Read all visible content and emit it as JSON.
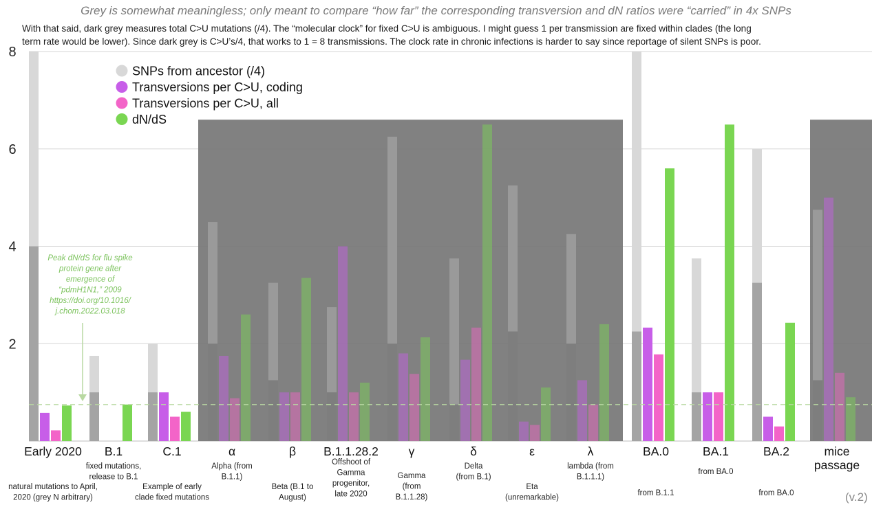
{
  "subtitle": "Grey is somewhat meaningless; only meant to compare “how far” the corresponding transversion and dN ratios were “carried” in 4x SNPs",
  "note_lines": [
    "With that said, dark grey measures total C>U mutations (/4). The “molecular clock” for fixed C>U is ambiguous. I might guess 1 per transmission are fixed within clades (the long",
    "term rate would be lower). Since dark grey is C>U’s/4, that works to 1 = 8 transmissions. The clock rate in chronic infections is harder to say since reportage of silent SNPs is poor."
  ],
  "version": "(v.2)",
  "colors": {
    "grey_light": "#d8d8d8",
    "grey_dark": "#a4a4a4",
    "purple": "#c75ee8",
    "pink": "#f364c8",
    "green": "#7ad652",
    "band": "#767676"
  },
  "chart_data": {
    "type": "bar",
    "title": "",
    "ylim": [
      0,
      8
    ],
    "yticks": [
      2,
      4,
      6,
      8
    ],
    "legend": {
      "position": "top-left",
      "entries": [
        {
          "label": "SNPs from ancestor (/4)",
          "color": "#d8d8d8"
        },
        {
          "label": "Transversions per C>U, coding",
          "color": "#c75ee8"
        },
        {
          "label": "Transversions per C>U, all",
          "color": "#f364c8"
        },
        {
          "label": "dN/dS",
          "color": "#7ad652"
        }
      ]
    },
    "reference_line": {
      "y": 0.75,
      "label": "Peak dN/dS for flu spike protein gene after emergence of “pdmH1N1,” 2009 https://doi.org/10.1016/j.chom.2022.03.018"
    },
    "annotation_lines": [
      "Peak dN/dS for flu spike",
      "protein gene after",
      "emergence of",
      "“pdmH1N1,” 2009",
      "https://doi.org/10.1016/",
      "j.chom.2022.03.018"
    ],
    "shaded_groups": [
      [
        "α",
        "β",
        "B.1.1.28.2",
        "γ",
        "δ",
        "ε",
        "λ"
      ],
      [
        "mice passage"
      ]
    ],
    "groups": [
      {
        "label": "Early 2020",
        "label_lines": [
          "Early 2020"
        ],
        "sub_lines": [
          "natural mutations to April,",
          "2020 (grey N arbitrary)"
        ],
        "snps_total": 8.0,
        "cu_over4": 4.0,
        "transv_coding": 0.58,
        "transv_all": 0.22,
        "dnds": 0.73,
        "shaded": false
      },
      {
        "label": "B.1",
        "label_lines": [
          "B.1"
        ],
        "sub_lines": [
          "fixed mutations,",
          "release to B.1"
        ],
        "snps_total": 1.75,
        "cu_over4": 1.0,
        "transv_coding": null,
        "transv_all": null,
        "dnds": 0.75,
        "shaded": false
      },
      {
        "label": "C.1",
        "label_lines": [
          "C.1"
        ],
        "sub_lines": [
          "Example of early",
          "clade fixed mutations"
        ],
        "snps_total": 2.0,
        "cu_over4": 1.0,
        "transv_coding": 1.0,
        "transv_all": 0.5,
        "dnds": 0.6,
        "shaded": false
      },
      {
        "label": "α",
        "label_lines": [
          "α"
        ],
        "sub_lines": [
          "Alpha (from",
          "B.1.1)"
        ],
        "snps_total": 4.5,
        "cu_over4": 2.0,
        "transv_coding": 1.75,
        "transv_all": 0.88,
        "dnds": 2.6,
        "shaded": true
      },
      {
        "label": "β",
        "label_lines": [
          "β"
        ],
        "sub_lines": [
          "Beta (B.1 to",
          "August)"
        ],
        "snps_total": 3.25,
        "cu_over4": 1.25,
        "transv_coding": 1.0,
        "transv_all": 1.0,
        "dnds": 3.35,
        "shaded": true
      },
      {
        "label": "B.1.1.28.2",
        "label_lines": [
          "B.1.1.28.2"
        ],
        "sub_lines": [
          "Offshoot of",
          "Gamma",
          "progenitor,",
          "late 2020"
        ],
        "snps_total": 2.75,
        "cu_over4": 1.0,
        "transv_coding": 4.0,
        "transv_all": 1.0,
        "dnds": 1.2,
        "shaded": true
      },
      {
        "label": "γ",
        "label_lines": [
          "γ"
        ],
        "sub_lines": [
          "Gamma",
          "(from",
          "B.1.1.28)"
        ],
        "snps_total": 6.25,
        "cu_over4": 2.0,
        "transv_coding": 1.8,
        "transv_all": 1.38,
        "dnds": 2.13,
        "shaded": true
      },
      {
        "label": "δ",
        "label_lines": [
          "δ"
        ],
        "sub_lines": [
          "Delta",
          "(from B.1)"
        ],
        "snps_total": 3.75,
        "cu_over4": 0.75,
        "transv_coding": 1.67,
        "transv_all": 2.33,
        "dnds": 6.5,
        "shaded": true
      },
      {
        "label": "ε",
        "label_lines": [
          "ε"
        ],
        "sub_lines": [
          "Eta",
          "(unremarkable)"
        ],
        "snps_total": 5.25,
        "cu_over4": 2.25,
        "transv_coding": 0.4,
        "transv_all": 0.33,
        "dnds": 1.1,
        "shaded": true
      },
      {
        "label": "λ",
        "label_lines": [
          "λ"
        ],
        "sub_lines": [
          "lambda (from",
          "B.1.1.1)"
        ],
        "snps_total": 4.25,
        "cu_over4": 2.0,
        "transv_coding": 1.25,
        "transv_all": 0.75,
        "dnds": 2.4,
        "shaded": true
      },
      {
        "label": "BA.0",
        "label_lines": [
          "BA.0"
        ],
        "sub_lines": [
          "from B.1.1"
        ],
        "snps_total": 8.0,
        "cu_over4": 2.25,
        "transv_coding": 2.33,
        "transv_all": 1.78,
        "dnds": 5.6,
        "shaded": false
      },
      {
        "label": "BA.1",
        "label_lines": [
          "BA.1"
        ],
        "sub_lines": [
          "from BA.0"
        ],
        "snps_total": 3.75,
        "cu_over4": 1.0,
        "transv_coding": 1.0,
        "transv_all": 1.0,
        "dnds": 6.5,
        "shaded": false
      },
      {
        "label": "BA.2",
        "label_lines": [
          "BA.2"
        ],
        "sub_lines": [
          "from BA.0"
        ],
        "snps_total": 6.0,
        "cu_over4": 3.25,
        "transv_coding": 0.5,
        "transv_all": 0.3,
        "dnds": 2.43,
        "shaded": false
      },
      {
        "label": "mice passage",
        "label_lines": [
          "mice",
          "passage"
        ],
        "sub_lines": [],
        "snps_total": 4.75,
        "cu_over4": 1.25,
        "transv_coding": 5.0,
        "transv_all": 1.4,
        "dnds": 0.9,
        "shaded": true
      }
    ]
  }
}
